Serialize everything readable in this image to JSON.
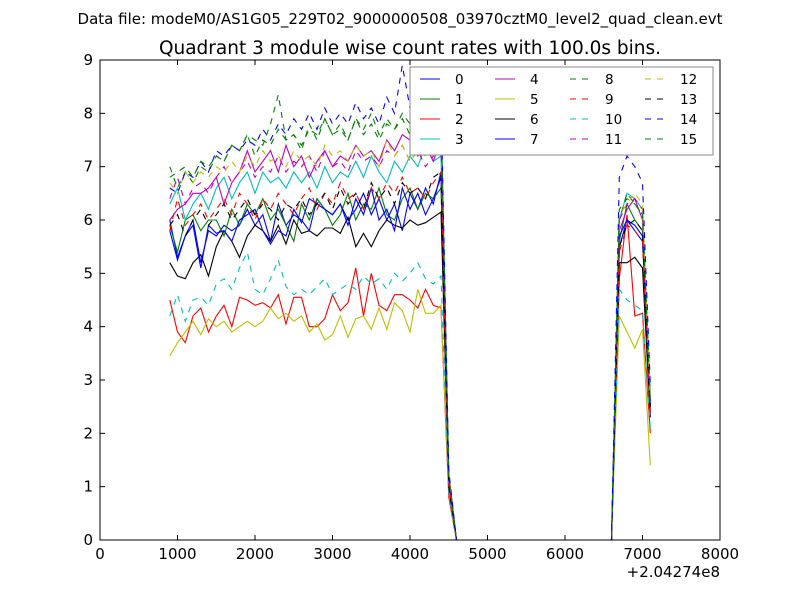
{
  "chart_data": {
    "type": "line",
    "suptitle": "Data file: modeM0/AS1G05_229T02_9000000508_03970cztM0_level2_quad_clean.evt",
    "title": "Quadrant 3 module wise count rates with 100.0s bins.",
    "xlabel": "",
    "ylabel": "",
    "x_offset_label": "+2.04274e8",
    "xlim": [
      0,
      8000
    ],
    "ylim": [
      0,
      9
    ],
    "xticks": [
      0,
      1000,
      2000,
      3000,
      4000,
      5000,
      6000,
      7000,
      8000
    ],
    "yticks": [
      0,
      1,
      2,
      3,
      4,
      5,
      6,
      7,
      8,
      9
    ],
    "grid": false,
    "legend_placement": "top-right",
    "legend_columns": 4,
    "x": [
      900,
      1000,
      1100,
      1200,
      1300,
      1400,
      1500,
      1600,
      1700,
      1800,
      1900,
      2000,
      2100,
      2200,
      2300,
      2400,
      2500,
      2600,
      2700,
      2800,
      2900,
      3000,
      3100,
      3200,
      3300,
      3400,
      3500,
      3600,
      3700,
      3800,
      3900,
      4000,
      4100,
      4200,
      4300,
      4400,
      4500,
      4600,
      6600,
      6700,
      6800,
      6900,
      7000,
      7100
    ],
    "series": [
      {
        "name": "0",
        "color": "#0000ff",
        "style": "solid",
        "values": [
          6.0,
          5.3,
          5.7,
          6.0,
          5.2,
          5.8,
          5.7,
          5.9,
          5.8,
          5.9,
          6.2,
          5.9,
          6.1,
          5.6,
          6.3,
          5.9,
          6.1,
          6.0,
          5.8,
          6.4,
          6.2,
          6.1,
          6.3,
          6.0,
          6.2,
          6.5,
          6.1,
          6.4,
          6.0,
          6.3,
          5.8,
          6.5,
          6.2,
          6.6,
          6.3,
          6.9,
          1.2,
          0,
          0,
          5.5,
          6.0,
          5.8,
          5.6,
          2.6
        ]
      },
      {
        "name": "1",
        "color": "#008000",
        "style": "solid",
        "values": [
          5.9,
          5.4,
          6.0,
          6.1,
          5.8,
          6.0,
          6.0,
          5.7,
          6.2,
          5.9,
          6.3,
          6.1,
          6.4,
          6.0,
          6.2,
          5.9,
          5.6,
          6.3,
          6.0,
          6.4,
          6.2,
          5.9,
          6.1,
          6.5,
          6.0,
          6.3,
          6.2,
          6.6,
          6.1,
          6.0,
          6.4,
          6.6,
          6.2,
          6.5,
          6.4,
          6.6,
          1.0,
          0,
          0,
          5.6,
          6.3,
          6.0,
          5.8,
          2.4
        ]
      },
      {
        "name": "2",
        "color": "#ff0000",
        "style": "solid",
        "values": [
          4.5,
          3.9,
          3.7,
          4.2,
          4.35,
          3.9,
          4.2,
          4.4,
          4.0,
          4.55,
          4.5,
          4.4,
          4.45,
          4.35,
          4.6,
          4.05,
          4.55,
          4.55,
          4.0,
          4.0,
          4.15,
          4.6,
          4.3,
          4.45,
          5.1,
          4.2,
          5.0,
          4.4,
          4.3,
          4.6,
          4.6,
          4.5,
          4.35,
          4.7,
          4.4,
          4.35,
          0.8,
          0,
          0,
          4.9,
          6.1,
          4.2,
          4.25,
          2.0
        ]
      },
      {
        "name": "3",
        "color": "#00bfbf",
        "style": "solid",
        "values": [
          6.3,
          6.6,
          6.0,
          6.3,
          6.5,
          6.2,
          6.6,
          6.8,
          6.4,
          6.7,
          6.9,
          6.5,
          6.9,
          6.7,
          6.8,
          6.6,
          6.9,
          6.7,
          6.9,
          6.6,
          7.0,
          6.7,
          6.9,
          6.8,
          7.1,
          6.8,
          7.2,
          6.9,
          6.7,
          7.1,
          6.9,
          7.2,
          7.0,
          7.4,
          7.1,
          7.2,
          1.1,
          0,
          0,
          6.0,
          6.5,
          6.4,
          6.2,
          2.8
        ]
      },
      {
        "name": "4",
        "color": "#bf00bf",
        "style": "solid",
        "values": [
          6.0,
          6.2,
          6.3,
          6.5,
          6.5,
          6.6,
          6.8,
          6.3,
          6.7,
          6.9,
          7.3,
          6.9,
          7.1,
          7.3,
          6.9,
          7.4,
          7.0,
          7.2,
          6.8,
          7.1,
          7.3,
          7.0,
          7.2,
          7.1,
          7.4,
          7.2,
          7.3,
          7.1,
          7.5,
          7.3,
          7.6,
          7.5,
          7.2,
          7.4,
          7.1,
          7.5,
          1.2,
          0,
          0,
          5.8,
          6.2,
          6.4,
          6.0,
          2.5
        ]
      },
      {
        "name": "5",
        "color": "#bfbf00",
        "style": "solid",
        "values": [
          3.45,
          3.7,
          3.9,
          4.1,
          3.85,
          4.15,
          4.0,
          4.1,
          3.9,
          4.0,
          4.1,
          4.0,
          4.1,
          4.35,
          4.15,
          4.25,
          4.1,
          4.2,
          3.9,
          4.05,
          3.75,
          3.85,
          4.2,
          3.8,
          4.15,
          4.2,
          3.95,
          4.35,
          3.95,
          4.45,
          4.3,
          3.9,
          4.7,
          4.25,
          4.25,
          4.4,
          0.9,
          0,
          0,
          4.2,
          3.9,
          3.6,
          3.95,
          1.4
        ]
      },
      {
        "name": "6",
        "color": "#000000",
        "style": "solid",
        "values": [
          5.2,
          4.95,
          4.9,
          5.2,
          5.35,
          4.95,
          5.5,
          5.8,
          5.6,
          5.3,
          5.7,
          5.9,
          5.8,
          5.6,
          5.9,
          5.55,
          6.0,
          5.75,
          5.8,
          5.7,
          5.85,
          5.85,
          5.75,
          6.05,
          5.5,
          5.75,
          5.5,
          5.8,
          6.0,
          5.9,
          5.85,
          6.0,
          5.9,
          5.95,
          6.05,
          6.15,
          1.0,
          0,
          0,
          5.2,
          5.2,
          5.3,
          5.1,
          2.3
        ]
      },
      {
        "name": "7",
        "color": "#0000ff",
        "style": "solid",
        "values": [
          5.8,
          5.25,
          5.7,
          5.9,
          5.1,
          5.9,
          5.75,
          5.8,
          5.6,
          6.0,
          6.1,
          6.2,
          5.8,
          5.55,
          5.8,
          5.7,
          6.2,
          5.95,
          6.4,
          6.3,
          6.2,
          6.1,
          6.3,
          5.9,
          6.4,
          6.1,
          6.6,
          6.0,
          6.2,
          5.8,
          6.6,
          6.2,
          6.5,
          6.1,
          6.4,
          6.8,
          1.1,
          0,
          0,
          5.7,
          6.0,
          5.9,
          5.7,
          2.5
        ]
      },
      {
        "name": "8",
        "color": "#008000",
        "style": "dashed",
        "values": [
          7.0,
          6.6,
          6.9,
          6.7,
          7.0,
          6.9,
          7.2,
          7.1,
          7.4,
          7.3,
          7.6,
          7.2,
          7.5,
          7.4,
          7.7,
          7.5,
          7.6,
          7.3,
          7.8,
          7.5,
          7.9,
          7.6,
          7.7,
          7.5,
          7.9,
          7.6,
          7.8,
          7.5,
          7.8,
          7.7,
          7.9,
          7.6,
          7.8,
          7.5,
          7.7,
          7.8,
          1.2,
          0,
          0,
          6.0,
          6.5,
          6.3,
          6.1,
          2.6
        ]
      },
      {
        "name": "9",
        "color": "#ff0000",
        "style": "dashed",
        "values": [
          5.8,
          6.4,
          5.9,
          6.1,
          6.3,
          6.0,
          6.2,
          6.4,
          6.1,
          6.5,
          6.3,
          6.0,
          6.4,
          6.2,
          6.5,
          6.3,
          6.1,
          6.4,
          6.6,
          6.2,
          6.5,
          6.3,
          6.7,
          6.4,
          6.5,
          6.2,
          6.6,
          6.4,
          6.7,
          6.5,
          6.8,
          6.5,
          6.6,
          6.4,
          6.7,
          6.9,
          1.0,
          0,
          0,
          5.4,
          5.9,
          5.8,
          5.6,
          2.4
        ]
      },
      {
        "name": "10",
        "color": "#00bfbf",
        "style": "dashed",
        "values": [
          4.2,
          4.6,
          4.1,
          4.5,
          4.55,
          4.4,
          4.8,
          4.9,
          4.7,
          5.1,
          5.4,
          4.7,
          4.6,
          4.9,
          5.25,
          4.75,
          4.6,
          4.7,
          4.6,
          4.75,
          4.9,
          4.6,
          4.7,
          4.8,
          4.7,
          4.95,
          4.8,
          4.9,
          4.7,
          5.0,
          4.85,
          5.0,
          5.2,
          4.9,
          4.8,
          4.95,
          0.9,
          0,
          0,
          4.7,
          4.5,
          4.4,
          4.3,
          2.1
        ]
      },
      {
        "name": "11",
        "color": "#bf00bf",
        "style": "dashed",
        "values": [
          6.4,
          6.8,
          6.3,
          6.6,
          6.7,
          6.5,
          6.8,
          7.0,
          6.7,
          6.9,
          7.1,
          6.8,
          7.0,
          6.9,
          7.2,
          6.9,
          7.1,
          7.0,
          7.2,
          6.9,
          7.3,
          7.0,
          7.1,
          6.9,
          7.3,
          7.1,
          7.2,
          7.0,
          7.3,
          7.2,
          7.4,
          7.1,
          7.3,
          7.0,
          7.2,
          7.4,
          1.1,
          0,
          0,
          6.0,
          6.3,
          6.4,
          6.2,
          2.6
        ]
      },
      {
        "name": "12",
        "color": "#bfbf00",
        "style": "dashed",
        "values": [
          6.7,
          6.5,
          6.9,
          6.7,
          6.9,
          6.8,
          7.0,
          6.9,
          7.1,
          6.9,
          7.2,
          7.0,
          7.3,
          7.1,
          7.2,
          7.0,
          7.3,
          7.1,
          7.2,
          7.0,
          7.4,
          7.2,
          7.3,
          7.1,
          7.4,
          7.2,
          7.3,
          7.0,
          7.5,
          7.2,
          7.4,
          7.1,
          7.3,
          7.2,
          7.4,
          7.6,
          1.2,
          0,
          0,
          6.1,
          6.3,
          6.5,
          6.3,
          2.7
        ]
      },
      {
        "name": "13",
        "color": "#000000",
        "style": "dashed",
        "values": [
          5.9,
          6.1,
          5.7,
          6.0,
          6.2,
          5.9,
          6.1,
          6.3,
          6.0,
          6.2,
          6.4,
          6.1,
          6.3,
          6.2,
          6.0,
          6.3,
          6.2,
          6.4,
          6.1,
          6.3,
          6.5,
          6.2,
          6.6,
          6.3,
          6.5,
          6.2,
          6.7,
          6.4,
          6.6,
          6.3,
          6.7,
          6.5,
          6.6,
          6.4,
          6.8,
          6.9,
          1.0,
          0,
          0,
          5.5,
          5.9,
          6.0,
          5.8,
          2.5
        ]
      },
      {
        "name": "14",
        "color": "#0000ff",
        "style": "dashed",
        "values": [
          6.6,
          6.5,
          6.9,
          6.8,
          7.1,
          6.9,
          7.3,
          7.2,
          7.4,
          7.3,
          7.5,
          7.4,
          7.7,
          7.5,
          7.8,
          7.6,
          7.9,
          7.7,
          8.0,
          7.7,
          8.1,
          7.8,
          8.0,
          7.8,
          8.2,
          7.9,
          8.1,
          7.8,
          8.3,
          8.0,
          8.9,
          8.1,
          8.4,
          8.2,
          8.5,
          8.3,
          1.3,
          0,
          0,
          6.8,
          7.2,
          7.0,
          6.7,
          2.9
        ]
      },
      {
        "name": "15",
        "color": "#008000",
        "style": "dashed",
        "values": [
          6.8,
          6.9,
          7.0,
          6.8,
          7.1,
          7.0,
          7.2,
          7.1,
          7.4,
          7.3,
          7.6,
          7.5,
          7.4,
          7.8,
          8.35,
          7.5,
          7.6,
          7.4,
          7.7,
          7.6,
          7.9,
          7.6,
          7.8,
          7.5,
          7.9,
          7.7,
          8.0,
          7.6,
          7.9,
          7.7,
          8.0,
          7.8,
          7.9,
          7.7,
          8.0,
          8.1,
          1.2,
          0,
          0,
          6.2,
          6.4,
          6.3,
          6.1,
          2.6
        ]
      }
    ]
  }
}
